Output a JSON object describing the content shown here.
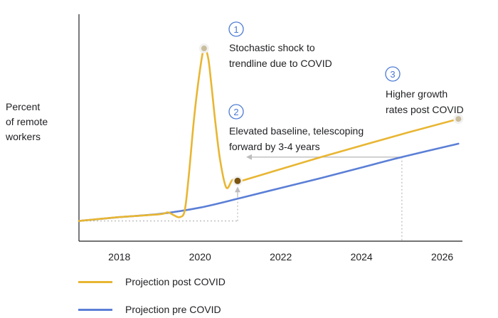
{
  "chart_data": {
    "type": "line",
    "ylabel": "Percent of remote workers",
    "ylabel_lines": [
      "Percent",
      "of remote",
      "workers"
    ],
    "xlabel": "",
    "x_ticks": [
      "2018",
      "2020",
      "2022",
      "2024",
      "2026"
    ],
    "xlim": [
      2017.0,
      2026.5
    ],
    "ylim": [
      0,
      100
    ],
    "grid": false,
    "legend_placement": "bottom-left",
    "colors": {
      "post": "#e8b633",
      "pre": "#5b7fd6",
      "annotation": "#4a79d4",
      "arrow": "#bdbdbd"
    },
    "series": [
      {
        "name": "Projection post COVID",
        "key": "post",
        "x": [
          2017.0,
          2018.0,
          2019.0,
          2019.2,
          2019.35,
          2019.5,
          2019.62,
          2019.72,
          2019.85,
          2020.0,
          2020.1,
          2020.2,
          2020.28,
          2020.38,
          2020.5,
          2020.65,
          2020.8,
          2020.93,
          2021.1,
          2023.0,
          2025.0,
          2026.4
        ],
        "values": [
          6.5,
          8.5,
          10.0,
          11.0,
          9.5,
          8.5,
          12.0,
          30.0,
          60.0,
          86.0,
          97.0,
          92.0,
          78.0,
          58.0,
          38.0,
          24.0,
          28.0,
          27.5,
          28.0,
          40.0,
          52.0,
          60.0
        ]
      },
      {
        "name": "Projection pre COVID",
        "key": "pre",
        "x": [
          2017.0,
          2018.0,
          2019.0,
          2020.0,
          2021.0,
          2022.0,
          2023.0,
          2024.0,
          2025.0,
          2026.4
        ],
        "values": [
          6.5,
          8.5,
          10.2,
          13.5,
          18.5,
          23.8,
          29.0,
          34.5,
          40.0,
          47.0
        ]
      }
    ],
    "key_points": [
      {
        "x": 2020.1,
        "y": 97.0,
        "style": "peak"
      },
      {
        "x": 2020.93,
        "y": 27.5,
        "style": "baseline"
      },
      {
        "x": 2026.4,
        "y": 60.0,
        "style": "end"
      }
    ],
    "annotations": [
      {
        "number": "1",
        "lines": [
          "Stochastic shock to",
          "trendline due to COVID"
        ]
      },
      {
        "number": "2",
        "lines": [
          "Elevated baseline, telescoping",
          "forward by 3-4 years"
        ]
      },
      {
        "number": "3",
        "lines": [
          "Higher growth",
          "rates post COVID"
        ]
      }
    ]
  },
  "legend": [
    {
      "label": "Projection post COVID",
      "color": "#e8b633"
    },
    {
      "label": "Projection pre COVID",
      "color": "#5b7fd6"
    }
  ]
}
